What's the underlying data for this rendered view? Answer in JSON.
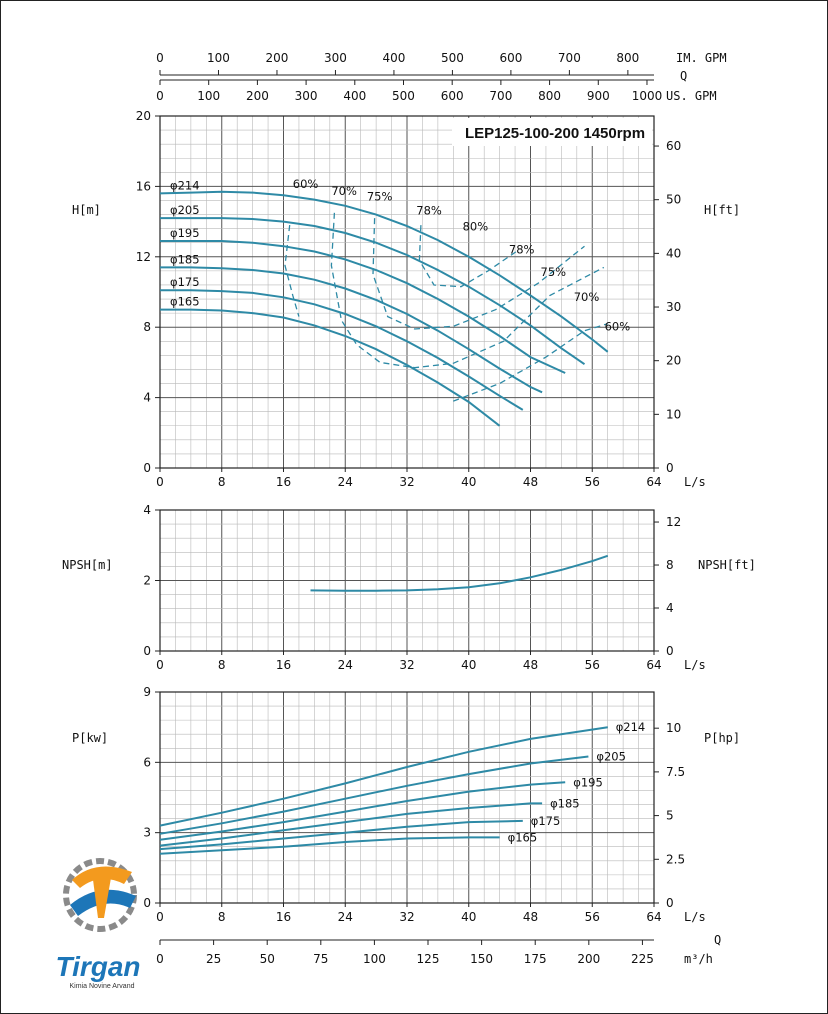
{
  "colors": {
    "curve": "#2e8aa6",
    "grid_minor": "#b9b9b9",
    "grid_major": "#555555",
    "axis": "#222222",
    "logo_orange": "#f39a1e",
    "logo_blue": "#1d76b8",
    "logo_gray": "#8a8a8a"
  },
  "top_axes": {
    "im_gpm": {
      "label": "IM. GPM",
      "ticks": [
        "0",
        "100",
        "200",
        "300",
        "400",
        "500",
        "600",
        "700",
        "800"
      ]
    },
    "q_label": "Q",
    "us_gpm": {
      "label": "US. GPM",
      "ticks": [
        "0",
        "100",
        "200",
        "300",
        "400",
        "500",
        "600",
        "700",
        "800",
        "900",
        "1000"
      ]
    }
  },
  "bottom_axes": {
    "ls_label": "L/s",
    "q_label": "Q",
    "m3h_label": "m³/h",
    "m3h_ticks": [
      "0",
      "25",
      "50",
      "75",
      "100",
      "125",
      "150",
      "175",
      "200",
      "225"
    ]
  },
  "chart_data": [
    {
      "type": "line",
      "title": "LEP125-100-200 1450rpm",
      "xlabel": "L/s",
      "ylabel": "H[m]",
      "ylabel_right": "H[ft]",
      "xlim": [
        0,
        64
      ],
      "ylim": [
        0,
        20
      ],
      "ylim_right": [
        0,
        65.6
      ],
      "x_ticks": [
        "0",
        "8",
        "16",
        "24",
        "32",
        "40",
        "48",
        "56",
        "64"
      ],
      "y_ticks": [
        "0",
        "4",
        "8",
        "12",
        "16",
        "20"
      ],
      "y_ticks_right": [
        "0",
        "10",
        "20",
        "30",
        "40",
        "50",
        "60"
      ],
      "grid": true,
      "series": [
        {
          "name": "φ214",
          "x": [
            0,
            4,
            8,
            12,
            16,
            20,
            24,
            28,
            32,
            36,
            40,
            44,
            48,
            52,
            56,
            58
          ],
          "y": [
            15.6,
            15.65,
            15.7,
            15.65,
            15.5,
            15.25,
            14.9,
            14.4,
            13.75,
            12.95,
            12.0,
            10.95,
            9.8,
            8.6,
            7.3,
            6.6
          ]
        },
        {
          "name": "φ205",
          "x": [
            0,
            4,
            8,
            12,
            16,
            20,
            24,
            28,
            32,
            36,
            40,
            44,
            48,
            52,
            55
          ],
          "y": [
            14.2,
            14.2,
            14.2,
            14.15,
            14.0,
            13.75,
            13.35,
            12.8,
            12.1,
            11.25,
            10.3,
            9.25,
            8.1,
            6.8,
            5.9
          ]
        },
        {
          "name": "φ195",
          "x": [
            0,
            4,
            8,
            12,
            16,
            20,
            24,
            28,
            32,
            36,
            40,
            44,
            48,
            52.5
          ],
          "y": [
            12.9,
            12.9,
            12.9,
            12.8,
            12.6,
            12.3,
            11.85,
            11.25,
            10.5,
            9.6,
            8.6,
            7.5,
            6.3,
            5.4
          ]
        },
        {
          "name": "φ185",
          "x": [
            0,
            4,
            8,
            12,
            16,
            20,
            24,
            28,
            32,
            36,
            40,
            44,
            48,
            49.5
          ],
          "y": [
            11.4,
            11.4,
            11.35,
            11.25,
            11.05,
            10.7,
            10.2,
            9.55,
            8.75,
            7.8,
            6.75,
            5.65,
            4.6,
            4.3
          ]
        },
        {
          "name": "φ175",
          "x": [
            0,
            4,
            8,
            12,
            16,
            20,
            24,
            28,
            32,
            36,
            40,
            44,
            47
          ],
          "y": [
            10.1,
            10.1,
            10.05,
            9.95,
            9.7,
            9.3,
            8.75,
            8.05,
            7.2,
            6.25,
            5.2,
            4.1,
            3.3
          ]
        },
        {
          "name": "φ165",
          "x": [
            0,
            4,
            8,
            12,
            16,
            20,
            24,
            28,
            32,
            36,
            40,
            44
          ],
          "y": [
            9.0,
            9.0,
            8.95,
            8.8,
            8.55,
            8.1,
            7.5,
            6.75,
            5.85,
            4.85,
            3.75,
            2.4
          ]
        }
      ],
      "efficiency_labels": [
        "60%",
        "70%",
        "75%",
        "78%",
        "80%",
        "78%",
        "75%",
        "70%",
        "60%"
      ]
    },
    {
      "type": "line",
      "xlabel": "L/s",
      "ylabel": "NPSH[m]",
      "ylabel_right": "NPSH[ft]",
      "xlim": [
        0,
        64
      ],
      "ylim": [
        0,
        4
      ],
      "ylim_right": [
        0,
        13.12
      ],
      "x_ticks": [
        "0",
        "8",
        "16",
        "24",
        "32",
        "40",
        "48",
        "56",
        "64"
      ],
      "y_ticks": [
        "0",
        "2",
        "4"
      ],
      "y_ticks_right": [
        "0",
        "4",
        "8",
        "12"
      ],
      "grid": true,
      "series": [
        {
          "x": [
            19.5,
            24,
            28,
            32,
            36,
            40,
            44,
            48,
            52,
            56,
            58
          ],
          "y": [
            1.72,
            1.71,
            1.71,
            1.72,
            1.75,
            1.81,
            1.92,
            2.09,
            2.3,
            2.55,
            2.7
          ]
        }
      ]
    },
    {
      "type": "line",
      "xlabel": "L/s",
      "ylabel": "P[kw]",
      "ylabel_right": "P[hp]",
      "xlim": [
        0,
        64
      ],
      "ylim": [
        0,
        9
      ],
      "ylim_right": [
        0,
        12.07
      ],
      "x_ticks": [
        "0",
        "8",
        "16",
        "24",
        "32",
        "40",
        "48",
        "56",
        "64"
      ],
      "y_ticks": [
        "0",
        "3",
        "6",
        "9"
      ],
      "y_ticks_right": [
        "0",
        "2.5",
        "5",
        "7.5",
        "10"
      ],
      "grid": true,
      "series": [
        {
          "name": "φ214",
          "x": [
            0,
            8,
            16,
            24,
            32,
            40,
            48,
            58
          ],
          "y": [
            3.3,
            3.85,
            4.45,
            5.1,
            5.8,
            6.45,
            7.0,
            7.5
          ]
        },
        {
          "name": "φ205",
          "x": [
            0,
            8,
            16,
            24,
            32,
            40,
            48,
            55.5
          ],
          "y": [
            2.95,
            3.4,
            3.9,
            4.45,
            5.0,
            5.5,
            5.95,
            6.25
          ]
        },
        {
          "name": "φ195",
          "x": [
            0,
            8,
            16,
            24,
            32,
            40,
            48,
            52.5
          ],
          "y": [
            2.7,
            3.05,
            3.45,
            3.9,
            4.35,
            4.75,
            5.05,
            5.15
          ]
        },
        {
          "name": "φ185",
          "x": [
            0,
            8,
            16,
            24,
            32,
            40,
            48,
            49.5
          ],
          "y": [
            2.45,
            2.75,
            3.1,
            3.45,
            3.8,
            4.05,
            4.25,
            4.25
          ]
        },
        {
          "name": "φ175",
          "x": [
            0,
            8,
            16,
            24,
            32,
            40,
            47
          ],
          "y": [
            2.3,
            2.5,
            2.75,
            3.0,
            3.25,
            3.45,
            3.5
          ]
        },
        {
          "name": "φ165",
          "x": [
            0,
            8,
            16,
            24,
            32,
            40,
            44
          ],
          "y": [
            2.1,
            2.25,
            2.4,
            2.6,
            2.75,
            2.8,
            2.8
          ]
        }
      ]
    }
  ],
  "logo": {
    "name": "Tirgan",
    "tagline": "Kimia Novine Arvand"
  }
}
